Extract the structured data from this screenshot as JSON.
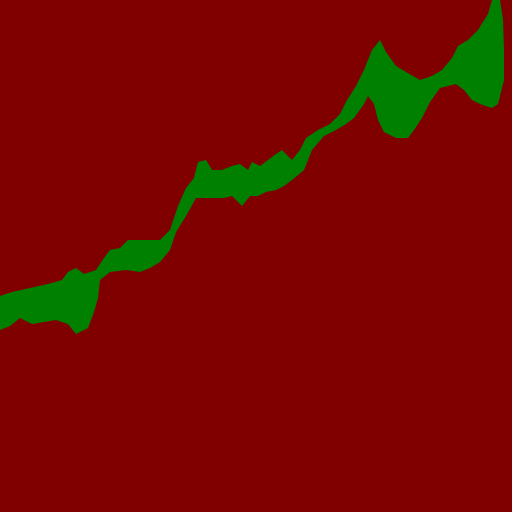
{
  "colors": {
    "background": "#800000",
    "band": "#008000"
  }
}
